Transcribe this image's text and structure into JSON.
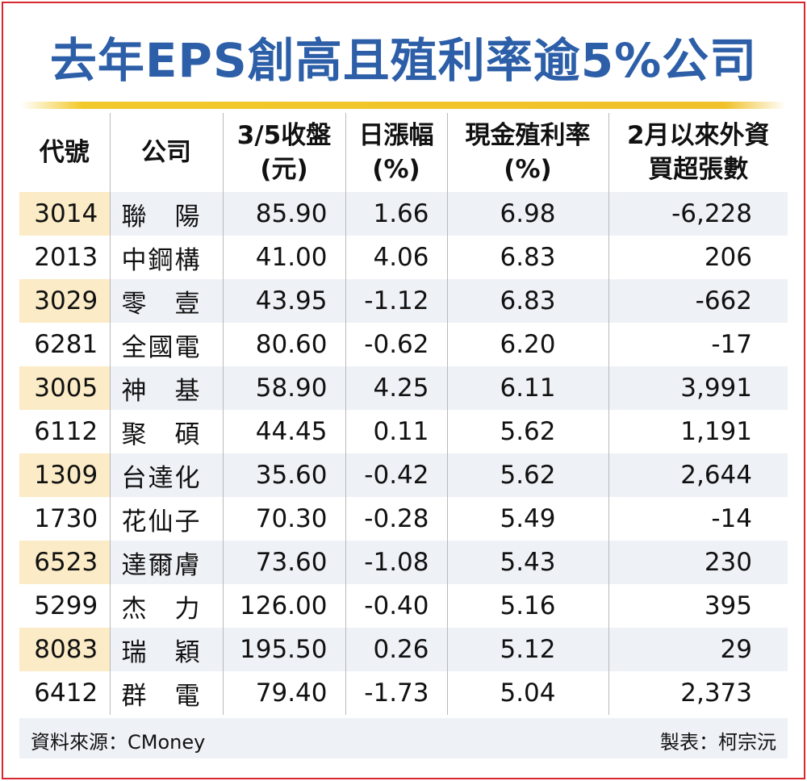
{
  "chart_data": {
    "type": "table",
    "title": "去年EPS創高且殖利率逾5%公司",
    "columns": [
      [
        "代號"
      ],
      [
        "公司"
      ],
      [
        "3/5收盤",
        "(元)"
      ],
      [
        "日漲幅",
        "(%)"
      ],
      [
        "現金殖利率",
        "(%)"
      ],
      [
        "2月以來外資",
        "買超張數"
      ]
    ],
    "rows": [
      {
        "code": "3014",
        "name": "聯　陽",
        "close": "85.90",
        "change": "1.66",
        "yield": "6.98",
        "foreign": "-6,228"
      },
      {
        "code": "2013",
        "name": "中鋼構",
        "close": "41.00",
        "change": "4.06",
        "yield": "6.83",
        "foreign": "206"
      },
      {
        "code": "3029",
        "name": "零　壹",
        "close": "43.95",
        "change": "-1.12",
        "yield": "6.83",
        "foreign": "-662"
      },
      {
        "code": "6281",
        "name": "全國電",
        "close": "80.60",
        "change": "-0.62",
        "yield": "6.20",
        "foreign": "-17"
      },
      {
        "code": "3005",
        "name": "神　基",
        "close": "58.90",
        "change": "4.25",
        "yield": "6.11",
        "foreign": "3,991"
      },
      {
        "code": "6112",
        "name": "聚　碩",
        "close": "44.45",
        "change": "0.11",
        "yield": "5.62",
        "foreign": "1,191"
      },
      {
        "code": "1309",
        "name": "台達化",
        "close": "35.60",
        "change": "-0.42",
        "yield": "5.62",
        "foreign": "2,644"
      },
      {
        "code": "1730",
        "name": "花仙子",
        "close": "70.30",
        "change": "-0.28",
        "yield": "5.49",
        "foreign": "-14"
      },
      {
        "code": "6523",
        "name": "達爾膚",
        "close": "73.60",
        "change": "-1.08",
        "yield": "5.43",
        "foreign": "230"
      },
      {
        "code": "5299",
        "name": "杰　力",
        "close": "126.00",
        "change": "-0.40",
        "yield": "5.16",
        "foreign": "395"
      },
      {
        "code": "8083",
        "name": "瑞　穎",
        "close": "195.50",
        "change": "0.26",
        "yield": "5.12",
        "foreign": "29"
      },
      {
        "code": "6412",
        "name": "群　電",
        "close": "79.40",
        "change": "-1.73",
        "yield": "5.04",
        "foreign": "2,373"
      }
    ],
    "source": "資料來源：CMoney",
    "maker": "製表：柯宗沅"
  },
  "colors": {
    "title": "#2d5fa8",
    "accent_line": "#f0c12a",
    "border": "#d8262e",
    "row_tint": "#eef1f6",
    "code_tint": "#fbebc6"
  }
}
